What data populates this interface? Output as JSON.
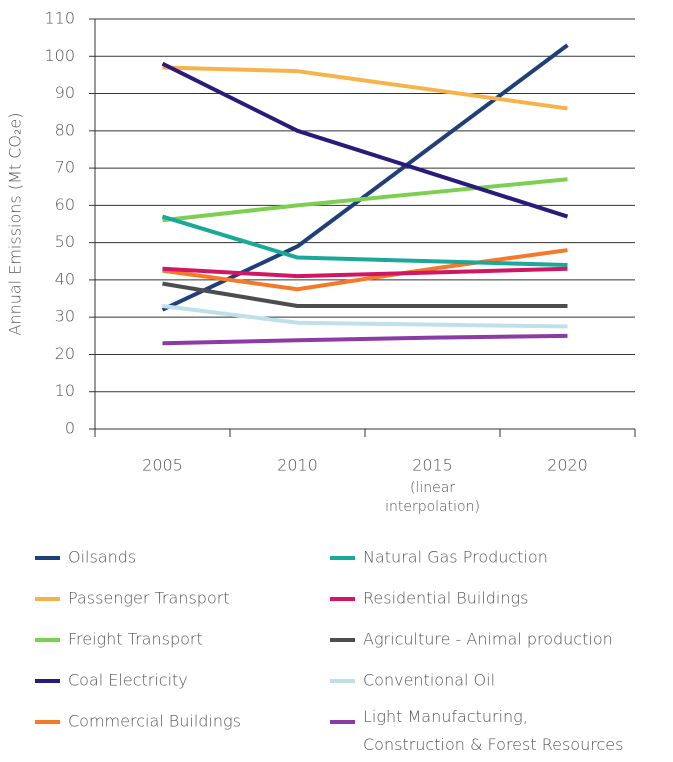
{
  "chart_data": {
    "type": "line",
    "y_label": "Annual Emissions (Mt CO₂e)",
    "categories": [
      "2005",
      "2010",
      "2015",
      "2020"
    ],
    "category_note": "(linear interpolation)",
    "ylim": [
      0,
      110
    ],
    "yticks": [
      0,
      10,
      20,
      30,
      40,
      50,
      60,
      70,
      80,
      90,
      100,
      110
    ],
    "grid": true,
    "legend": "bottom",
    "series": [
      {
        "name": "Oilsands",
        "color": "#1f3f7a",
        "values": [
          32,
          49,
          76,
          103
        ]
      },
      {
        "name": "Passenger Transport",
        "color": "#f7b24a",
        "values": [
          97,
          96,
          91,
          86
        ]
      },
      {
        "name": "Freight Transport",
        "color": "#7dcf52",
        "values": [
          56,
          60,
          63.5,
          67
        ]
      },
      {
        "name": "Coal Electricity",
        "color": "#2a1a7a",
        "values": [
          98,
          80,
          68.5,
          57
        ]
      },
      {
        "name": "Commercial Buildings",
        "color": "#f47a2a",
        "values": [
          42.5,
          37.5,
          43,
          48
        ]
      },
      {
        "name": "Natural Gas Production",
        "color": "#19a89a",
        "values": [
          57,
          46,
          45,
          44
        ]
      },
      {
        "name": "Residential Buildings",
        "color": "#d11763",
        "values": [
          43,
          41,
          42,
          43
        ]
      },
      {
        "name": "Agriculture - Animal production",
        "color": "#4d4d4d",
        "values": [
          39,
          33,
          33,
          33
        ]
      },
      {
        "name": "Conventional Oil",
        "color": "#bfe0ea",
        "values": [
          33,
          28.5,
          28,
          27.5
        ]
      },
      {
        "name": "Light Manufacturing, Construction & Forest Resources",
        "color": "#8a3ba5",
        "values": [
          23,
          23.8,
          24.5,
          25
        ]
      }
    ]
  }
}
